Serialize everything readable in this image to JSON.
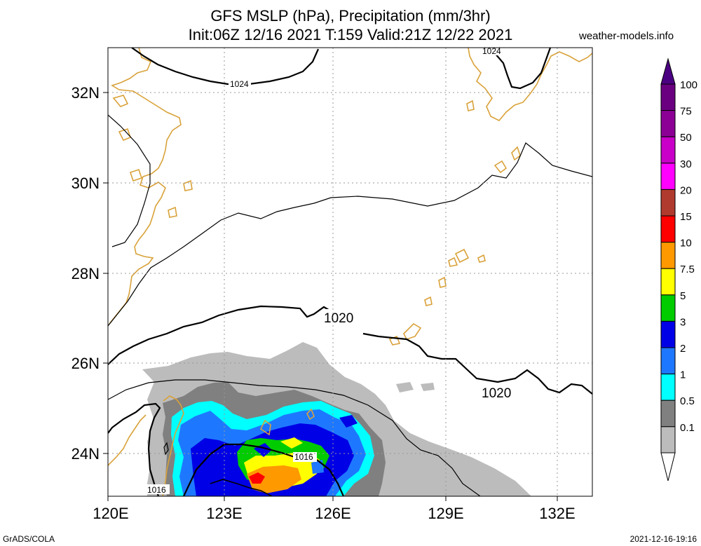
{
  "title_line1": "GFS MSLP (hPa), Precipitation (mm/3hr)",
  "title_line2": "Init:06Z 12/16 2021 T:159 Valid:21Z 12/22 2021",
  "site": "weather-models.info",
  "footer_left": "GrADS/COLA",
  "footer_right": "2021-12-16-19:16",
  "lat_labels": [
    "32N",
    "30N",
    "28N",
    "26N",
    "24N"
  ],
  "lon_labels": [
    "120E",
    "123E",
    "126E",
    "129E",
    "132E"
  ],
  "isobar_labels": {
    "l1024_a": "1024",
    "l1024_b": "1024",
    "l1020_a": "1020",
    "l1020_b": "1020",
    "l1016_a": "1016",
    "l1016_b": "1016"
  },
  "legend": {
    "labels": [
      "100",
      "75",
      "50",
      "30",
      "20",
      "15",
      "10",
      "7.5",
      "5",
      "3",
      "2",
      "1",
      "0.5",
      "0.1"
    ],
    "colors": [
      "#6a0080",
      "#8c0096",
      "#c800c8",
      "#ff00ff",
      "#b03a2e",
      "#ff0000",
      "#ff9900",
      "#ffff00",
      "#00cc00",
      "#0000e6",
      "#1e78ff",
      "#00ffff",
      "#808080",
      "#bcbcbc"
    ],
    "top_color": "#4b0082",
    "bottom_color": "#ffffff"
  },
  "colors": {
    "coast": "#d9a23a",
    "grid": "#999999",
    "isobar": "#000000"
  }
}
